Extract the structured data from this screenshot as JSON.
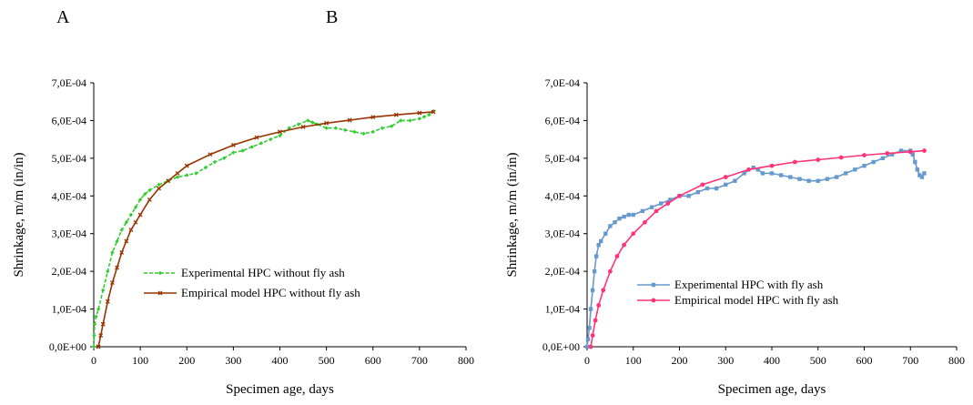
{
  "panel_labels": [
    "A",
    "B"
  ],
  "chart_data": [
    {
      "type": "line",
      "xlabel": "Specimen age, days",
      "ylabel": "Shrinkage, m/m (in/in)",
      "xlim": [
        0,
        800
      ],
      "ylim": [
        0,
        0.0007
      ],
      "x_ticks": [
        "0",
        "100",
        "200",
        "300",
        "400",
        "500",
        "600",
        "700",
        "800"
      ],
      "y_ticks": [
        "0,0E+00",
        "1,0E-04",
        "2,0E-04",
        "3,0E-04",
        "4,0E-04",
        "5,0E-04",
        "6,0E-04",
        "7,0E-04"
      ],
      "grid": false,
      "legend": "bottom-center",
      "series": [
        {
          "name": "Experimental HPC without fly ash",
          "color": "#33cc33",
          "style": "dashed",
          "marker": "diamond",
          "points": [
            [
              0,
              0.0
            ],
            [
              1,
              3e-05
            ],
            [
              2,
              6e-05
            ],
            [
              5,
              8e-05
            ],
            [
              10,
              0.0001
            ],
            [
              20,
              0.00015
            ],
            [
              30,
              0.0002
            ],
            [
              40,
              0.00025
            ],
            [
              50,
              0.00028
            ],
            [
              60,
              0.00031
            ],
            [
              70,
              0.00033
            ],
            [
              80,
              0.00035
            ],
            [
              90,
              0.00037
            ],
            [
              100,
              0.00039
            ],
            [
              110,
              0.000405
            ],
            [
              120,
              0.000415
            ],
            [
              140,
              0.00043
            ],
            [
              160,
              0.00044
            ],
            [
              180,
              0.00045
            ],
            [
              200,
              0.000455
            ],
            [
              220,
              0.00046
            ],
            [
              240,
              0.000475
            ],
            [
              260,
              0.00049
            ],
            [
              280,
              0.0005
            ],
            [
              300,
              0.000515
            ],
            [
              320,
              0.00052
            ],
            [
              340,
              0.00053
            ],
            [
              360,
              0.00054
            ],
            [
              380,
              0.00055
            ],
            [
              400,
              0.00056
            ],
            [
              420,
              0.00058
            ],
            [
              440,
              0.00059
            ],
            [
              460,
              0.0006
            ],
            [
              470,
              0.000595
            ],
            [
              480,
              0.00059
            ],
            [
              500,
              0.00058
            ],
            [
              520,
              0.00058
            ],
            [
              540,
              0.000575
            ],
            [
              560,
              0.00057
            ],
            [
              580,
              0.000565
            ],
            [
              600,
              0.00057
            ],
            [
              620,
              0.00058
            ],
            [
              640,
              0.000585
            ],
            [
              660,
              0.0006
            ],
            [
              680,
              0.0006
            ],
            [
              700,
              0.000605
            ],
            [
              710,
              0.00061
            ],
            [
              720,
              0.000615
            ],
            [
              730,
              0.000625
            ]
          ]
        },
        {
          "name": "Empirical model HPC without fly ash",
          "color": "#993300",
          "style": "solid",
          "marker": "x",
          "points": [
            [
              10,
              0.0
            ],
            [
              15,
              3e-05
            ],
            [
              20,
              6e-05
            ],
            [
              30,
              0.00012
            ],
            [
              40,
              0.00017
            ],
            [
              50,
              0.00021
            ],
            [
              60,
              0.00025
            ],
            [
              70,
              0.00028
            ],
            [
              80,
              0.00031
            ],
            [
              90,
              0.00033
            ],
            [
              100,
              0.00035
            ],
            [
              120,
              0.00039
            ],
            [
              140,
              0.00042
            ],
            [
              160,
              0.00044
            ],
            [
              180,
              0.00046
            ],
            [
              200,
              0.00048
            ],
            [
              250,
              0.00051
            ],
            [
              300,
              0.000535
            ],
            [
              350,
              0.000555
            ],
            [
              400,
              0.00057
            ],
            [
              450,
              0.000583
            ],
            [
              500,
              0.000593
            ],
            [
              550,
              0.000601
            ],
            [
              600,
              0.000609
            ],
            [
              650,
              0.000615
            ],
            [
              700,
              0.00062
            ],
            [
              730,
              0.000623
            ]
          ]
        }
      ]
    },
    {
      "type": "line",
      "xlabel": "Specimen age, days",
      "ylabel": "Shrinkage, m/m (in/in)",
      "xlim": [
        0,
        800
      ],
      "ylim": [
        0,
        0.0007
      ],
      "x_ticks": [
        "0",
        "100",
        "200",
        "300",
        "400",
        "500",
        "600",
        "700",
        "800"
      ],
      "y_ticks": [
        "0,0E+00",
        "1,0E-04",
        "2,0E-04",
        "3,0E-04",
        "4,0E-04",
        "5,0E-04",
        "6,0E-04",
        "7,0E-04"
      ],
      "grid": false,
      "legend": "bottom-center",
      "series": [
        {
          "name": "Experimental HPC with fly ash",
          "color": "#6699cc",
          "style": "solid",
          "marker": "square",
          "points": [
            [
              0,
              0.0
            ],
            [
              2,
              2e-05
            ],
            [
              5,
              5e-05
            ],
            [
              8,
              0.0001
            ],
            [
              12,
              0.00015
            ],
            [
              16,
              0.0002
            ],
            [
              20,
              0.00024
            ],
            [
              25,
              0.00027
            ],
            [
              30,
              0.00028
            ],
            [
              40,
              0.0003
            ],
            [
              50,
              0.00032
            ],
            [
              60,
              0.00033
            ],
            [
              70,
              0.00034
            ],
            [
              80,
              0.000345
            ],
            [
              90,
              0.00035
            ],
            [
              100,
              0.00035
            ],
            [
              120,
              0.00036
            ],
            [
              140,
              0.00037
            ],
            [
              160,
              0.00038
            ],
            [
              180,
              0.00039
            ],
            [
              200,
              0.0004
            ],
            [
              220,
              0.0004
            ],
            [
              240,
              0.00041
            ],
            [
              260,
              0.00042
            ],
            [
              280,
              0.00042
            ],
            [
              300,
              0.00043
            ],
            [
              320,
              0.00044
            ],
            [
              340,
              0.00046
            ],
            [
              360,
              0.000475
            ],
            [
              370,
              0.00047
            ],
            [
              380,
              0.00046
            ],
            [
              400,
              0.00046
            ],
            [
              420,
              0.000455
            ],
            [
              440,
              0.00045
            ],
            [
              460,
              0.000445
            ],
            [
              480,
              0.00044
            ],
            [
              500,
              0.00044
            ],
            [
              520,
              0.000445
            ],
            [
              540,
              0.00045
            ],
            [
              560,
              0.00046
            ],
            [
              580,
              0.00047
            ],
            [
              600,
              0.00048
            ],
            [
              620,
              0.00049
            ],
            [
              640,
              0.0005
            ],
            [
              660,
              0.00051
            ],
            [
              680,
              0.00052
            ],
            [
              700,
              0.00052
            ],
            [
              705,
              0.00051
            ],
            [
              710,
              0.00049
            ],
            [
              715,
              0.00047
            ],
            [
              720,
              0.000455
            ],
            [
              725,
              0.00045
            ],
            [
              730,
              0.00046
            ]
          ]
        },
        {
          "name": "Empirical model HPC with fly ash",
          "color": "#ff3377",
          "style": "solid",
          "marker": "circle",
          "points": [
            [
              8,
              0.0
            ],
            [
              12,
              3e-05
            ],
            [
              18,
              7e-05
            ],
            [
              25,
              0.00011
            ],
            [
              35,
              0.00015
            ],
            [
              50,
              0.0002
            ],
            [
              65,
              0.00024
            ],
            [
              80,
              0.00027
            ],
            [
              100,
              0.0003
            ],
            [
              125,
              0.00033
            ],
            [
              150,
              0.00036
            ],
            [
              175,
              0.00038
            ],
            [
              200,
              0.0004
            ],
            [
              250,
              0.00043
            ],
            [
              300,
              0.00045
            ],
            [
              350,
              0.00047
            ],
            [
              400,
              0.00048
            ],
            [
              450,
              0.00049
            ],
            [
              500,
              0.000496
            ],
            [
              550,
              0.000502
            ],
            [
              600,
              0.000508
            ],
            [
              650,
              0.000513
            ],
            [
              700,
              0.000517
            ],
            [
              730,
              0.00052
            ]
          ]
        }
      ]
    }
  ]
}
